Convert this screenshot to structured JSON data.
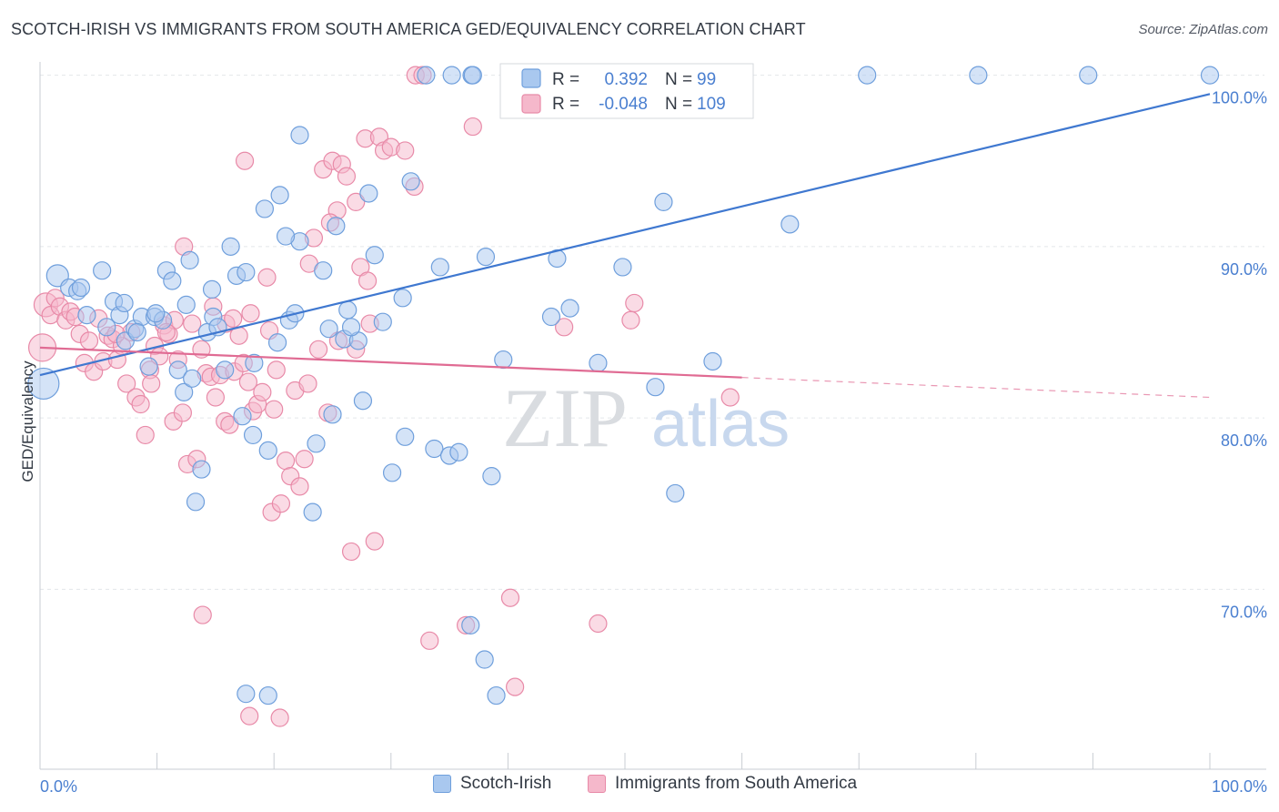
{
  "header": {
    "title": "SCOTCH-IRISH VS IMMIGRANTS FROM SOUTH AMERICA GED/EQUIVALENCY CORRELATION CHART",
    "source": "Source: ZipAtlas.com"
  },
  "watermark": {
    "zip": "ZIP",
    "atlas": "atlas"
  },
  "colors": {
    "blue_fill": "#a9c8ef",
    "blue_stroke": "#6f9fdc",
    "blue_line": "#3f78d0",
    "pink_fill": "#f5b8cb",
    "pink_stroke": "#e88aa8",
    "pink_line": "#e06b93",
    "axis_text": "#4a7fd0",
    "grid": "#e3e6ea"
  },
  "legend_top": {
    "rows": [
      {
        "r_label": "R =",
        "r_value": "0.392",
        "n_label": "N =",
        "n_value": "99"
      },
      {
        "r_label": "R =",
        "r_value": "-0.048",
        "n_label": "N =",
        "n_value": "109"
      }
    ]
  },
  "legend_bottom": {
    "items": [
      {
        "label": "Scotch-Irish"
      },
      {
        "label": "Immigrants from South America"
      }
    ]
  },
  "chart_data": {
    "type": "scatter",
    "title": "SCOTCH-IRISH VS IMMIGRANTS FROM SOUTH AMERICA GED/EQUIVALENCY CORRELATION CHART",
    "xlabel": "",
    "ylabel": "GED/Equivalency",
    "xlim": [
      0,
      100
    ],
    "ylim": [
      59.5,
      101.2
    ],
    "x_tick_labels": [
      "0.0%",
      "100.0%"
    ],
    "y_ticks": [
      70,
      80,
      90,
      100
    ],
    "y_tick_labels": [
      "70.0%",
      "80.0%",
      "90.0%",
      "100.0%"
    ],
    "grid": true,
    "legend_position": "top-center",
    "series": [
      {
        "name": "Scotch-Irish",
        "r": 0.392,
        "n": 99,
        "trend": {
          "x": [
            0,
            100
          ],
          "y": [
            82.5,
            98.9
          ],
          "dashed_from": null
        },
        "points": [
          [
            0.3,
            82.0
          ],
          [
            1.5,
            88.3
          ],
          [
            2.5,
            87.6
          ],
          [
            3.2,
            87.4
          ],
          [
            3.5,
            87.6
          ],
          [
            5.3,
            88.6
          ],
          [
            4.0,
            86.0
          ],
          [
            6.3,
            86.8
          ],
          [
            5.7,
            85.3
          ],
          [
            6.8,
            86.0
          ],
          [
            7.3,
            84.5
          ],
          [
            8.1,
            85.2
          ],
          [
            8.7,
            85.9
          ],
          [
            8.3,
            85.0
          ],
          [
            9.3,
            83.0
          ],
          [
            9.8,
            85.9
          ],
          [
            10.5,
            85.7
          ],
          [
            10.8,
            88.6
          ],
          [
            11.3,
            88.0
          ],
          [
            11.8,
            82.8
          ],
          [
            12.3,
            81.5
          ],
          [
            12.8,
            89.2
          ],
          [
            13.3,
            75.1
          ],
          [
            13.8,
            77.0
          ],
          [
            14.3,
            85.0
          ],
          [
            14.8,
            85.9
          ],
          [
            15.2,
            85.3
          ],
          [
            15.8,
            82.8
          ],
          [
            16.3,
            90.0
          ],
          [
            16.8,
            88.3
          ],
          [
            17.3,
            80.1
          ],
          [
            18.3,
            83.2
          ],
          [
            17.6,
            88.5
          ],
          [
            19.2,
            92.2
          ],
          [
            19.5,
            78.1
          ],
          [
            20.3,
            84.4
          ],
          [
            20.5,
            93.0
          ],
          [
            21.3,
            85.7
          ],
          [
            22.2,
            96.5
          ],
          [
            21.8,
            86.1
          ],
          [
            23.3,
            74.5
          ],
          [
            23.6,
            78.5
          ],
          [
            24.2,
            88.6
          ],
          [
            24.7,
            85.2
          ],
          [
            25.3,
            91.2
          ],
          [
            26.0,
            84.6
          ],
          [
            27.2,
            84.5
          ],
          [
            26.6,
            85.3
          ],
          [
            27.6,
            81.0
          ],
          [
            28.1,
            93.1
          ],
          [
            28.6,
            89.5
          ],
          [
            29.3,
            85.6
          ],
          [
            30.1,
            76.8
          ],
          [
            31.2,
            78.9
          ],
          [
            31.7,
            93.8
          ],
          [
            33.7,
            78.2
          ],
          [
            34.2,
            88.8
          ],
          [
            35.0,
            77.8
          ],
          [
            35.8,
            78.0
          ],
          [
            38.1,
            89.4
          ],
          [
            38.6,
            76.6
          ],
          [
            39.6,
            83.4
          ],
          [
            43.7,
            85.9
          ],
          [
            44.2,
            89.3
          ],
          [
            45.3,
            86.4
          ],
          [
            47.7,
            83.2
          ],
          [
            49.8,
            88.8
          ],
          [
            53.3,
            92.6
          ],
          [
            54.3,
            75.6
          ],
          [
            57.5,
            83.3
          ],
          [
            64.1,
            91.3
          ],
          [
            33.0,
            100.0
          ],
          [
            35.2,
            100.0
          ],
          [
            36.9,
            100.0
          ],
          [
            37.0,
            100.0
          ],
          [
            44.5,
            100.0
          ],
          [
            56.8,
            100.0
          ],
          [
            58.5,
            100.0
          ],
          [
            70.7,
            100.0
          ],
          [
            80.2,
            100.0
          ],
          [
            89.6,
            100.0
          ],
          [
            100.0,
            100.0
          ],
          [
            17.6,
            63.9
          ],
          [
            19.5,
            63.8
          ],
          [
            36.8,
            67.9
          ],
          [
            38.0,
            65.9
          ],
          [
            39.0,
            63.8
          ],
          [
            52.6,
            81.8
          ],
          [
            22.2,
            90.3
          ],
          [
            26.3,
            86.3
          ],
          [
            31.0,
            87.0
          ],
          [
            12.5,
            86.6
          ],
          [
            7.2,
            86.7
          ],
          [
            9.9,
            86.1
          ],
          [
            21.0,
            90.6
          ],
          [
            25.0,
            80.2
          ],
          [
            14.7,
            87.5
          ],
          [
            18.2,
            79.0
          ],
          [
            13.0,
            82.3
          ]
        ]
      },
      {
        "name": "Immigrants from South America",
        "r": -0.048,
        "n": 109,
        "trend": {
          "x": [
            0,
            100
          ],
          "y": [
            84.1,
            81.2
          ],
          "dashed_from": 60
        },
        "points": [
          [
            0.2,
            84.1
          ],
          [
            0.5,
            86.6
          ],
          [
            0.9,
            86.0
          ],
          [
            1.3,
            87.0
          ],
          [
            1.7,
            86.5
          ],
          [
            2.2,
            85.7
          ],
          [
            2.6,
            86.2
          ],
          [
            3.0,
            85.9
          ],
          [
            3.4,
            84.9
          ],
          [
            3.8,
            83.2
          ],
          [
            4.2,
            84.5
          ],
          [
            4.6,
            82.7
          ],
          [
            5.0,
            85.8
          ],
          [
            5.4,
            83.3
          ],
          [
            5.8,
            84.8
          ],
          [
            6.2,
            84.6
          ],
          [
            6.6,
            83.4
          ],
          [
            7.0,
            84.2
          ],
          [
            7.4,
            82.0
          ],
          [
            7.8,
            85.0
          ],
          [
            8.2,
            81.2
          ],
          [
            8.6,
            80.8
          ],
          [
            9.0,
            79.0
          ],
          [
            9.4,
            82.8
          ],
          [
            9.8,
            84.2
          ],
          [
            10.2,
            83.6
          ],
          [
            10.6,
            85.4
          ],
          [
            11.0,
            84.9
          ],
          [
            11.4,
            79.8
          ],
          [
            11.8,
            83.4
          ],
          [
            12.2,
            80.3
          ],
          [
            12.6,
            77.3
          ],
          [
            13.0,
            85.5
          ],
          [
            13.4,
            77.6
          ],
          [
            13.8,
            84.0
          ],
          [
            14.2,
            82.6
          ],
          [
            14.6,
            82.4
          ],
          [
            15.0,
            81.2
          ],
          [
            15.4,
            82.5
          ],
          [
            15.8,
            79.8
          ],
          [
            16.2,
            79.6
          ],
          [
            16.6,
            82.7
          ],
          [
            17.0,
            84.8
          ],
          [
            17.4,
            83.2
          ],
          [
            17.8,
            82.1
          ],
          [
            18.2,
            80.4
          ],
          [
            18.6,
            80.8
          ],
          [
            19.0,
            81.5
          ],
          [
            19.4,
            88.2
          ],
          [
            19.8,
            74.5
          ],
          [
            20.2,
            82.8
          ],
          [
            20.6,
            75.0
          ],
          [
            21.0,
            77.5
          ],
          [
            21.4,
            76.6
          ],
          [
            21.8,
            81.6
          ],
          [
            22.2,
            76.0
          ],
          [
            22.6,
            77.6
          ],
          [
            23.0,
            89.0
          ],
          [
            23.4,
            90.5
          ],
          [
            23.8,
            84.0
          ],
          [
            24.2,
            94.5
          ],
          [
            24.6,
            80.3
          ],
          [
            25.0,
            95.0
          ],
          [
            25.4,
            92.1
          ],
          [
            25.8,
            94.8
          ],
          [
            26.2,
            94.1
          ],
          [
            26.6,
            72.2
          ],
          [
            27.0,
            92.6
          ],
          [
            27.4,
            88.8
          ],
          [
            27.8,
            96.3
          ],
          [
            28.2,
            85.5
          ],
          [
            28.6,
            72.8
          ],
          [
            29.0,
            96.4
          ],
          [
            29.4,
            95.6
          ],
          [
            30.0,
            95.8
          ],
          [
            31.2,
            95.6
          ],
          [
            32.1,
            100.0
          ],
          [
            32.7,
            100.0
          ],
          [
            33.3,
            67.0
          ],
          [
            36.4,
            67.9
          ],
          [
            37.0,
            97.0
          ],
          [
            40.2,
            69.5
          ],
          [
            40.6,
            64.3
          ],
          [
            44.8,
            85.3
          ],
          [
            47.7,
            68.0
          ],
          [
            50.5,
            85.7
          ],
          [
            50.8,
            86.7
          ],
          [
            59.0,
            81.2
          ],
          [
            17.9,
            62.6
          ],
          [
            20.5,
            62.5
          ],
          [
            18.0,
            86.1
          ],
          [
            13.9,
            68.5
          ],
          [
            15.9,
            85.5
          ],
          [
            22.9,
            82.0
          ],
          [
            11.5,
            85.7
          ],
          [
            6.5,
            84.9
          ],
          [
            19.6,
            85.1
          ],
          [
            28.0,
            88.0
          ],
          [
            24.8,
            91.4
          ],
          [
            10.8,
            85.0
          ],
          [
            12.3,
            90.0
          ],
          [
            17.5,
            95.0
          ],
          [
            32.0,
            93.5
          ],
          [
            27.0,
            84.0
          ],
          [
            9.5,
            82.0
          ],
          [
            14.8,
            86.5
          ],
          [
            16.5,
            85.8
          ],
          [
            20.0,
            80.5
          ],
          [
            25.5,
            84.5
          ]
        ]
      }
    ]
  }
}
